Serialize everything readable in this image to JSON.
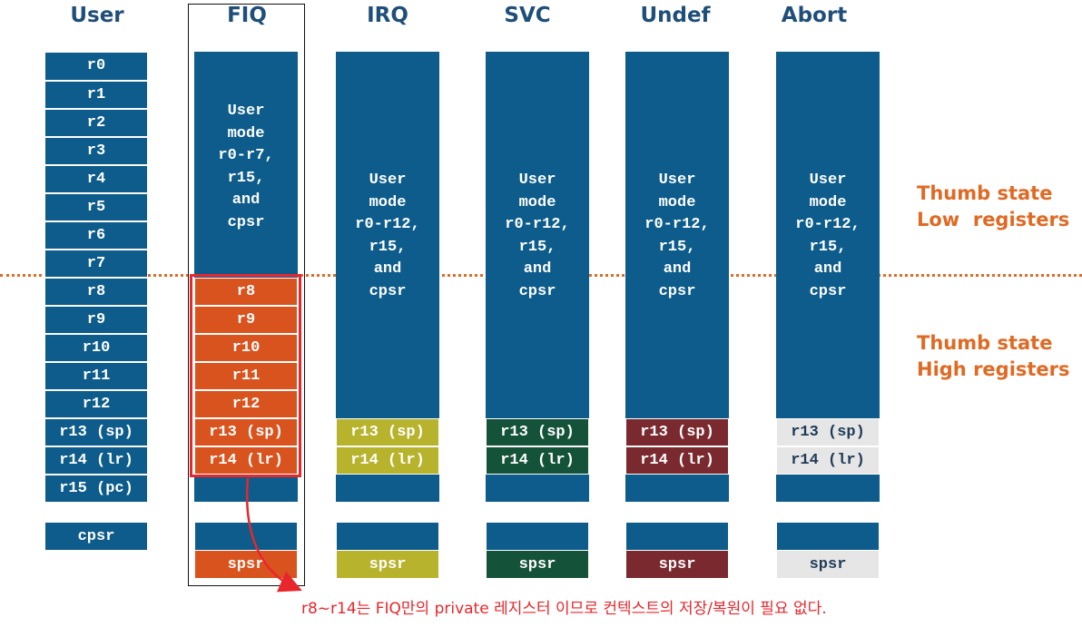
{
  "columns": [
    {
      "title": "User",
      "cells": [
        "r0",
        "r1",
        "r2",
        "r3",
        "r4",
        "r5",
        "r6",
        "r7",
        "r8",
        "r9",
        "r10",
        "r11",
        "r12",
        "r13 (sp)",
        "r14 (lr)",
        "r15 (pc)"
      ],
      "cpsr": "cpsr"
    },
    {
      "title": "FIQ",
      "shared_text": "User\nmode\nr0-r7,\nr15,\nand\ncpsr",
      "banked": [
        "r8",
        "r9",
        "r10",
        "r11",
        "r12",
        "r13 (sp)",
        "r14 (lr)"
      ],
      "spsr": "spsr",
      "color": "#d9531e"
    },
    {
      "title": "IRQ",
      "shared_text": "User\nmode\nr0-r12,\nr15,\nand\ncpsr",
      "banked": [
        "r13 (sp)",
        "r14 (lr)"
      ],
      "spsr": "spsr",
      "color": "#b7b32c"
    },
    {
      "title": "SVC",
      "shared_text": "User\nmode\nr0-r12,\nr15,\nand\ncpsr",
      "banked": [
        "r13 (sp)",
        "r14 (lr)"
      ],
      "spsr": "spsr",
      "color": "#14533a"
    },
    {
      "title": "Undef",
      "shared_text": "User\nmode\nr0-r12,\nr15,\nand\ncpsr",
      "banked": [
        "r13 (sp)",
        "r14 (lr)"
      ],
      "spsr": "spsr",
      "color": "#7a2a2f"
    },
    {
      "title": "Abort",
      "shared_text": "User\nmode\nr0-r12,\nr15,\nand\ncpsr",
      "banked": [
        "r13 (sp)",
        "r14 (lr)"
      ],
      "spsr": "spsr",
      "color": "#e6e6e6"
    }
  ],
  "side_labels": {
    "low_line1": "Thumb state",
    "low_line2": "Low  registers",
    "high_line1": "Thumb state",
    "high_line2": "High registers"
  },
  "annotation": "r8~r14는 FIQ만의 private 레지스터 이므로 컨텍스트의 저장/복원이 필요 없다.",
  "colors": {
    "register_blue": "#0d5c8b",
    "dotted_divider": "#e06a24",
    "highlight_red": "#e8262c",
    "header_text": "#1f4e79"
  }
}
